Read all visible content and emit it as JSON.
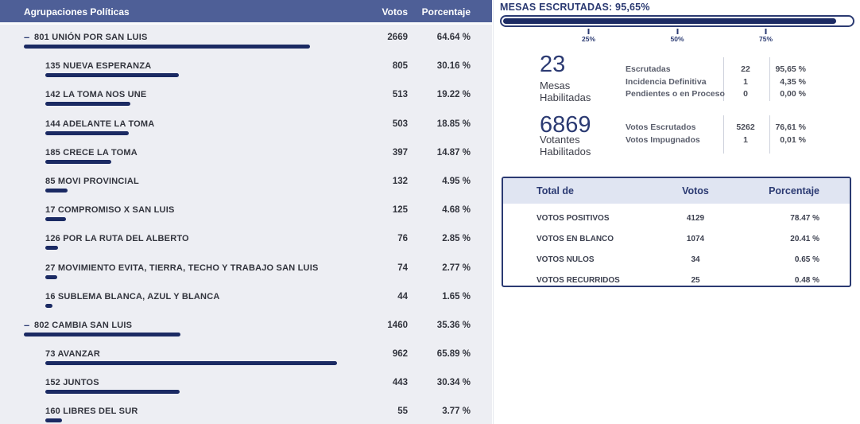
{
  "colors": {
    "header_blue": "#4e5f97",
    "bar_navy": "#1b2a63",
    "navy_text": "#2b3a72",
    "lavender": "#e0e5f2"
  },
  "left_table": {
    "headers": {
      "party": "Agrupaciones Políticas",
      "votes": "Votos",
      "pct": "Porcentaje"
    },
    "rows": [
      {
        "name": "801 UNIÓN POR SAN LUIS",
        "votes": "2669",
        "pct": "64.64 %",
        "pct_value": 64.64,
        "level": 0,
        "collapser": "–"
      },
      {
        "name": "135 NUEVA ESPERANZA",
        "votes": "805",
        "pct": "30.16 %",
        "pct_value": 30.16,
        "level": 1
      },
      {
        "name": "142 LA TOMA NOS UNE",
        "votes": "513",
        "pct": "19.22 %",
        "pct_value": 19.22,
        "level": 1
      },
      {
        "name": "144 ADELANTE LA TOMA",
        "votes": "503",
        "pct": "18.85 %",
        "pct_value": 18.85,
        "level": 1
      },
      {
        "name": "185 CRECE LA TOMA",
        "votes": "397",
        "pct": "14.87 %",
        "pct_value": 14.87,
        "level": 1
      },
      {
        "name": "85 MOVI PROVINCIAL",
        "votes": "132",
        "pct": "4.95 %",
        "pct_value": 4.95,
        "level": 1
      },
      {
        "name": "17 COMPROMISO X SAN LUIS",
        "votes": "125",
        "pct": "4.68 %",
        "pct_value": 4.68,
        "level": 1
      },
      {
        "name": "126 POR LA RUTA DEL ALBERTO",
        "votes": "76",
        "pct": "2.85 %",
        "pct_value": 2.85,
        "level": 1
      },
      {
        "name": "27 MOVIMIENTO EVITA, TIERRA, TECHO Y TRABAJO SAN LUIS",
        "votes": "74",
        "pct": "2.77 %",
        "pct_value": 2.77,
        "level": 1
      },
      {
        "name": "16 SUBLEMA BLANCA, AZUL Y BLANCA",
        "votes": "44",
        "pct": "1.65 %",
        "pct_value": 1.65,
        "level": 1
      },
      {
        "name": "802 CAMBIA SAN LUIS",
        "votes": "1460",
        "pct": "35.36 %",
        "pct_value": 35.36,
        "level": 0,
        "collapser": "–"
      },
      {
        "name": "73 AVANZAR",
        "votes": "962",
        "pct": "65.89 %",
        "pct_value": 65.89,
        "level": 1
      },
      {
        "name": "152 JUNTOS",
        "votes": "443",
        "pct": "30.34 %",
        "pct_value": 30.34,
        "level": 1
      },
      {
        "name": "160 LIBRES DEL SUR",
        "votes": "55",
        "pct": "3.77 %",
        "pct_value": 3.77,
        "level": 1
      }
    ]
  },
  "mesas": {
    "title": "MESAS ESCRUTADAS: 95,65%",
    "pct_value": 95.65,
    "ticks": [
      {
        "pos": 25,
        "label": "25%"
      },
      {
        "pos": 50,
        "label": "50%"
      },
      {
        "pos": 75,
        "label": "75%"
      }
    ]
  },
  "stats": [
    {
      "big": "23",
      "label_line1": "Mesas",
      "label_line2": "Habilitadas",
      "rows": [
        {
          "label": "Escrutadas",
          "value": "22",
          "pct": "95,65 %"
        },
        {
          "label": "Incidencia Definitiva",
          "value": "1",
          "pct": "4,35 %"
        },
        {
          "label": "Pendientes o en Proceso",
          "value": "0",
          "pct": "0,00 %"
        }
      ]
    },
    {
      "big": "6869",
      "label_line1": "Votantes",
      "label_line2": "Habilitados",
      "rows": [
        {
          "label": "Votos Escrutados",
          "value": "5262",
          "pct": "76,61 %"
        },
        {
          "label": "Votos Impugnados",
          "value": "1",
          "pct": "0,01 %"
        }
      ]
    }
  ],
  "totals": {
    "headers": {
      "label": "Total de",
      "votes": "Votos",
      "pct": "Porcentaje"
    },
    "rows": [
      {
        "label": "VOTOS POSITIVOS",
        "votes": "4129",
        "pct": "78.47 %"
      },
      {
        "label": "VOTOS EN BLANCO",
        "votes": "1074",
        "pct": "20.41 %"
      },
      {
        "label": "VOTOS NULOS",
        "votes": "34",
        "pct": "0.65 %"
      },
      {
        "label": "VOTOS RECURRIDOS",
        "votes": "25",
        "pct": "0.48 %"
      }
    ]
  }
}
